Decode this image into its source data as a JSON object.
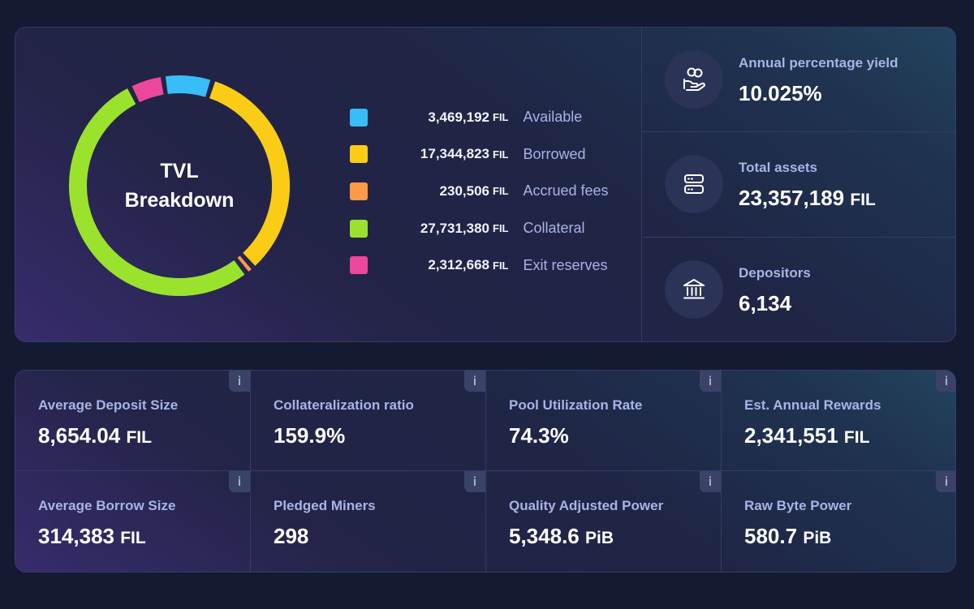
{
  "tvl": {
    "title": "TVL\nBreakdown",
    "items": [
      {
        "value": "3,469,192",
        "unit": "FIL",
        "label": "Available",
        "color": "#38bdf8",
        "amount": 3469192
      },
      {
        "value": "17,344,823",
        "unit": "FIL",
        "label": "Borrowed",
        "color": "#facc15",
        "amount": 17344823
      },
      {
        "value": "230,506",
        "unit": "FIL",
        "label": "Accrued fees",
        "color": "#fb9a48",
        "amount": 230506
      },
      {
        "value": "27,731,380",
        "unit": "FIL",
        "label": "Collateral",
        "color": "#9be22d",
        "amount": 27731380
      },
      {
        "value": "2,312,668",
        "unit": "FIL",
        "label": "Exit reserves",
        "color": "#ec4899",
        "amount": 2312668
      }
    ]
  },
  "stats": [
    {
      "label": "Annual percentage yield",
      "value": "10.025%",
      "unit": "",
      "icon": "hand-coins-icon"
    },
    {
      "label": "Total assets",
      "value": "23,357,189",
      "unit": "FIL",
      "icon": "database-icon"
    },
    {
      "label": "Depositors",
      "value": "6,134",
      "unit": "",
      "icon": "bank-icon"
    }
  ],
  "metrics": [
    {
      "label": "Average Deposit Size",
      "value": "8,654.04",
      "unit": "FIL",
      "info": "i"
    },
    {
      "label": "Collateralization ratio",
      "value": "159.9%",
      "unit": "",
      "info": "i"
    },
    {
      "label": "Pool Utilization Rate",
      "value": "74.3%",
      "unit": "",
      "info": "i"
    },
    {
      "label": "Est. Annual Rewards",
      "value": "2,341,551",
      "unit": "FIL",
      "info": "i"
    },
    {
      "label": "Average Borrow Size",
      "value": "314,383",
      "unit": "FIL",
      "info": "i"
    },
    {
      "label": "Pledged Miners",
      "value": "298",
      "unit": "",
      "info": "i"
    },
    {
      "label": "Quality Adjusted Power",
      "value": "5,348.6",
      "unit": "PiB",
      "info": "i"
    },
    {
      "label": "Raw Byte Power",
      "value": "580.7",
      "unit": "PiB",
      "info": "i"
    }
  ],
  "colors": {
    "background": "#141a32",
    "panel_border": "#343d63",
    "label": "#a8b4e6"
  }
}
